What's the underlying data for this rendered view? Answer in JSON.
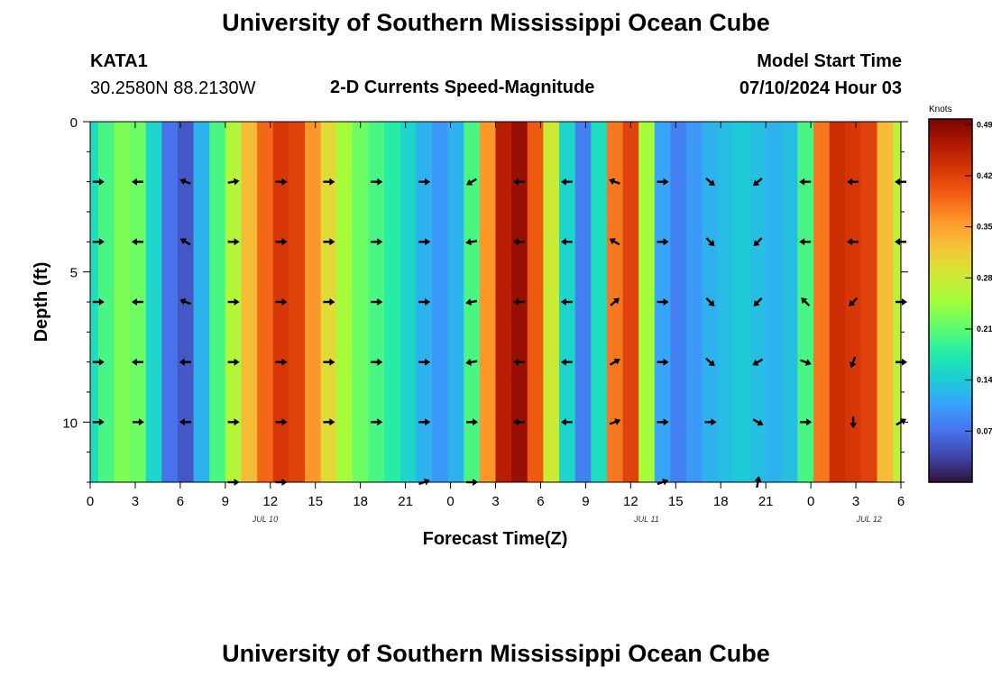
{
  "header": {
    "title": "University of Southern Mississippi Ocean Cube",
    "station": "KATA1",
    "coords": "30.2580N  88.2130W",
    "product": "2-D Currents Speed-Magnitude",
    "model_label": "Model Start Time",
    "model_time": "07/10/2024 Hour 03"
  },
  "footer": {
    "title": "University of Southern Mississippi Ocean Cube"
  },
  "colors": {
    "ramp": [
      "#30123b",
      "#4145ab",
      "#4675ed",
      "#39a2fc",
      "#1bcfd4",
      "#24eca6",
      "#61fc6c",
      "#a4fc3b",
      "#d1e834",
      "#f3c63a",
      "#fe9b2d",
      "#f36315",
      "#d93806",
      "#b11901",
      "#7a0403"
    ],
    "arrow": "#000000"
  },
  "chart_data": {
    "type": "heatmap",
    "xlabel": "Forecast Time(Z)",
    "ylabel": "Depth (ft)",
    "x_hours": [
      0,
      51
    ],
    "ylim": [
      0,
      12
    ],
    "xtick_labels": [
      "0",
      "3",
      "6",
      "9",
      "12",
      "15",
      "18",
      "21",
      "0",
      "3",
      "6",
      "9",
      "12",
      "15",
      "18",
      "21",
      "0",
      "3",
      "6"
    ],
    "ytick_values": [
      0,
      5,
      10
    ],
    "ytick_labels": [
      "0",
      "5",
      "10"
    ],
    "date_labels": [
      {
        "label": "JUL 10",
        "hour": 11
      },
      {
        "label": "JUL 11",
        "hour": 35
      },
      {
        "label": "JUL 12",
        "hour": 49
      }
    ],
    "colorbar": {
      "unit": "Knots",
      "range": [
        0,
        0.5
      ],
      "ticks": [
        {
          "value": 0.49218,
          "label": "0.49218"
        },
        {
          "value": 0.42187,
          "label": "0.42187"
        },
        {
          "value": 0.35156,
          "label": "0.35156"
        },
        {
          "value": 0.28125,
          "label": "0.28125"
        },
        {
          "value": 0.21093,
          "label": "0.21093"
        },
        {
          "value": 0.14062,
          "label": "0.14062"
        },
        {
          "value": 0.07031,
          "label": "0.07031"
        }
      ]
    },
    "speed_profile_knots": [
      {
        "hour": 0,
        "value": 0.16
      },
      {
        "hour": 1,
        "value": 0.2
      },
      {
        "hour": 2,
        "value": 0.23
      },
      {
        "hour": 3,
        "value": 0.22
      },
      {
        "hour": 4,
        "value": 0.15
      },
      {
        "hour": 5,
        "value": 0.07
      },
      {
        "hour": 6,
        "value": 0.05
      },
      {
        "hour": 7,
        "value": 0.12
      },
      {
        "hour": 8,
        "value": 0.2
      },
      {
        "hour": 9,
        "value": 0.26
      },
      {
        "hour": 10,
        "value": 0.33
      },
      {
        "hour": 11,
        "value": 0.39
      },
      {
        "hour": 12,
        "value": 0.43
      },
      {
        "hour": 13,
        "value": 0.42
      },
      {
        "hour": 14,
        "value": 0.36
      },
      {
        "hour": 15,
        "value": 0.3
      },
      {
        "hour": 16,
        "value": 0.25
      },
      {
        "hour": 17,
        "value": 0.22
      },
      {
        "hour": 18,
        "value": 0.2
      },
      {
        "hour": 19,
        "value": 0.18
      },
      {
        "hour": 20,
        "value": 0.15
      },
      {
        "hour": 21,
        "value": 0.12
      },
      {
        "hour": 22,
        "value": 0.1
      },
      {
        "hour": 23,
        "value": 0.12
      },
      {
        "hour": 24,
        "value": 0.2
      },
      {
        "hour": 25,
        "value": 0.36
      },
      {
        "hour": 26,
        "value": 0.46
      },
      {
        "hour": 27,
        "value": 0.48
      },
      {
        "hour": 28,
        "value": 0.4
      },
      {
        "hour": 29,
        "value": 0.28
      },
      {
        "hour": 30,
        "value": 0.15
      },
      {
        "hour": 31,
        "value": 0.08
      },
      {
        "hour": 32,
        "value": 0.16
      },
      {
        "hour": 33,
        "value": 0.38
      },
      {
        "hour": 34,
        "value": 0.42
      },
      {
        "hour": 35,
        "value": 0.25
      },
      {
        "hour": 36,
        "value": 0.11
      },
      {
        "hour": 37,
        "value": 0.08
      },
      {
        "hour": 38,
        "value": 0.1
      },
      {
        "hour": 39,
        "value": 0.12
      },
      {
        "hour": 40,
        "value": 0.13
      },
      {
        "hour": 41,
        "value": 0.14
      },
      {
        "hour": 42,
        "value": 0.13
      },
      {
        "hour": 43,
        "value": 0.12
      },
      {
        "hour": 44,
        "value": 0.13
      },
      {
        "hour": 45,
        "value": 0.2
      },
      {
        "hour": 46,
        "value": 0.38
      },
      {
        "hour": 47,
        "value": 0.44
      },
      {
        "hour": 48,
        "value": 0.43
      },
      {
        "hour": 49,
        "value": 0.42
      },
      {
        "hour": 50,
        "value": 0.33
      },
      {
        "hour": 51,
        "value": 0.27
      }
    ],
    "vectors": [
      {
        "hour": 0.5,
        "depth": 2,
        "angle": 0
      },
      {
        "hour": 3,
        "depth": 2,
        "angle": 180
      },
      {
        "hour": 6,
        "depth": 2,
        "angle": 200
      },
      {
        "hour": 9,
        "depth": 2,
        "angle": -10
      },
      {
        "hour": 12,
        "depth": 2,
        "angle": 0
      },
      {
        "hour": 15,
        "depth": 2,
        "angle": 0
      },
      {
        "hour": 18,
        "depth": 2,
        "angle": 0
      },
      {
        "hour": 21,
        "depth": 2,
        "angle": 0
      },
      {
        "hour": 24,
        "depth": 2,
        "angle": 150
      },
      {
        "hour": 27,
        "depth": 2,
        "angle": 180
      },
      {
        "hour": 30,
        "depth": 2,
        "angle": 180
      },
      {
        "hour": 33,
        "depth": 2,
        "angle": -160
      },
      {
        "hour": 36,
        "depth": 2,
        "angle": 0
      },
      {
        "hour": 39,
        "depth": 2,
        "angle": 40
      },
      {
        "hour": 42,
        "depth": 2,
        "angle": 140
      },
      {
        "hour": 45,
        "depth": 2,
        "angle": 180
      },
      {
        "hour": 48,
        "depth": 2,
        "angle": 180
      },
      {
        "hour": 51,
        "depth": 2,
        "angle": 180
      },
      {
        "hour": 0.5,
        "depth": 4,
        "angle": 0
      },
      {
        "hour": 3,
        "depth": 4,
        "angle": 180
      },
      {
        "hour": 6,
        "depth": 4,
        "angle": 210
      },
      {
        "hour": 9,
        "depth": 4,
        "angle": 0
      },
      {
        "hour": 12,
        "depth": 4,
        "angle": 0
      },
      {
        "hour": 15,
        "depth": 4,
        "angle": 0
      },
      {
        "hour": 18,
        "depth": 4,
        "angle": 0
      },
      {
        "hour": 21,
        "depth": 4,
        "angle": 0
      },
      {
        "hour": 24,
        "depth": 4,
        "angle": 170
      },
      {
        "hour": 27,
        "depth": 4,
        "angle": 180
      },
      {
        "hour": 30,
        "depth": 4,
        "angle": 180
      },
      {
        "hour": 33,
        "depth": 4,
        "angle": -150
      },
      {
        "hour": 36,
        "depth": 4,
        "angle": 0
      },
      {
        "hour": 39,
        "depth": 4,
        "angle": 45
      },
      {
        "hour": 42,
        "depth": 4,
        "angle": 135
      },
      {
        "hour": 45,
        "depth": 4,
        "angle": 180
      },
      {
        "hour": 48,
        "depth": 4,
        "angle": 180
      },
      {
        "hour": 51,
        "depth": 4,
        "angle": 180
      },
      {
        "hour": 0.5,
        "depth": 6,
        "angle": 0
      },
      {
        "hour": 3,
        "depth": 6,
        "angle": 180
      },
      {
        "hour": 6,
        "depth": 6,
        "angle": 200
      },
      {
        "hour": 9,
        "depth": 6,
        "angle": 0
      },
      {
        "hour": 12,
        "depth": 6,
        "angle": 0
      },
      {
        "hour": 15,
        "depth": 6,
        "angle": 0
      },
      {
        "hour": 18,
        "depth": 6,
        "angle": 0
      },
      {
        "hour": 21,
        "depth": 6,
        "angle": 0
      },
      {
        "hour": 24,
        "depth": 6,
        "angle": 170
      },
      {
        "hour": 27,
        "depth": 6,
        "angle": 180
      },
      {
        "hour": 30,
        "depth": 6,
        "angle": 180
      },
      {
        "hour": 33,
        "depth": 6,
        "angle": -40
      },
      {
        "hour": 36,
        "depth": 6,
        "angle": 0
      },
      {
        "hour": 39,
        "depth": 6,
        "angle": 45
      },
      {
        "hour": 42,
        "depth": 6,
        "angle": 135
      },
      {
        "hour": 45,
        "depth": 6,
        "angle": -135
      },
      {
        "hour": 48,
        "depth": 6,
        "angle": 135
      },
      {
        "hour": 51,
        "depth": 6,
        "angle": 0
      },
      {
        "hour": 0.5,
        "depth": 8,
        "angle": 0
      },
      {
        "hour": 3,
        "depth": 8,
        "angle": 180
      },
      {
        "hour": 6,
        "depth": 8,
        "angle": 180
      },
      {
        "hour": 9,
        "depth": 8,
        "angle": 0
      },
      {
        "hour": 12,
        "depth": 8,
        "angle": 0
      },
      {
        "hour": 15,
        "depth": 8,
        "angle": 0
      },
      {
        "hour": 18,
        "depth": 8,
        "angle": 0
      },
      {
        "hour": 21,
        "depth": 8,
        "angle": 0
      },
      {
        "hour": 24,
        "depth": 8,
        "angle": 170
      },
      {
        "hour": 27,
        "depth": 8,
        "angle": 180
      },
      {
        "hour": 30,
        "depth": 8,
        "angle": 180
      },
      {
        "hour": 33,
        "depth": 8,
        "angle": -30
      },
      {
        "hour": 36,
        "depth": 8,
        "angle": 0
      },
      {
        "hour": 39,
        "depth": 8,
        "angle": 40
      },
      {
        "hour": 42,
        "depth": 8,
        "angle": 150
      },
      {
        "hour": 45,
        "depth": 8,
        "angle": 20
      },
      {
        "hour": 48,
        "depth": 8,
        "angle": 110
      },
      {
        "hour": 51,
        "depth": 8,
        "angle": 0
      },
      {
        "hour": 0.5,
        "depth": 10,
        "angle": 0
      },
      {
        "hour": 3,
        "depth": 10,
        "angle": 0
      },
      {
        "hour": 6,
        "depth": 10,
        "angle": 180
      },
      {
        "hour": 9,
        "depth": 10,
        "angle": 0
      },
      {
        "hour": 12,
        "depth": 10,
        "angle": 0
      },
      {
        "hour": 15,
        "depth": 10,
        "angle": 0
      },
      {
        "hour": 18,
        "depth": 10,
        "angle": 0
      },
      {
        "hour": 21,
        "depth": 10,
        "angle": 0
      },
      {
        "hour": 24,
        "depth": 10,
        "angle": 0
      },
      {
        "hour": 27,
        "depth": 10,
        "angle": 180
      },
      {
        "hour": 30,
        "depth": 10,
        "angle": 180
      },
      {
        "hour": 33,
        "depth": 10,
        "angle": -20
      },
      {
        "hour": 36,
        "depth": 10,
        "angle": 0
      },
      {
        "hour": 39,
        "depth": 10,
        "angle": 0
      },
      {
        "hour": 42,
        "depth": 10,
        "angle": 30
      },
      {
        "hour": 45,
        "depth": 10,
        "angle": 0
      },
      {
        "hour": 48,
        "depth": 10,
        "angle": 90
      },
      {
        "hour": 51,
        "depth": 10,
        "angle": -30
      },
      {
        "hour": 9,
        "depth": 12,
        "angle": 0
      },
      {
        "hour": 12,
        "depth": 12,
        "angle": 0
      },
      {
        "hour": 21,
        "depth": 12,
        "angle": -20
      },
      {
        "hour": 24,
        "depth": 12,
        "angle": 0
      },
      {
        "hour": 36,
        "depth": 12,
        "angle": -20
      },
      {
        "hour": 42,
        "depth": 12,
        "angle": -80
      }
    ]
  }
}
